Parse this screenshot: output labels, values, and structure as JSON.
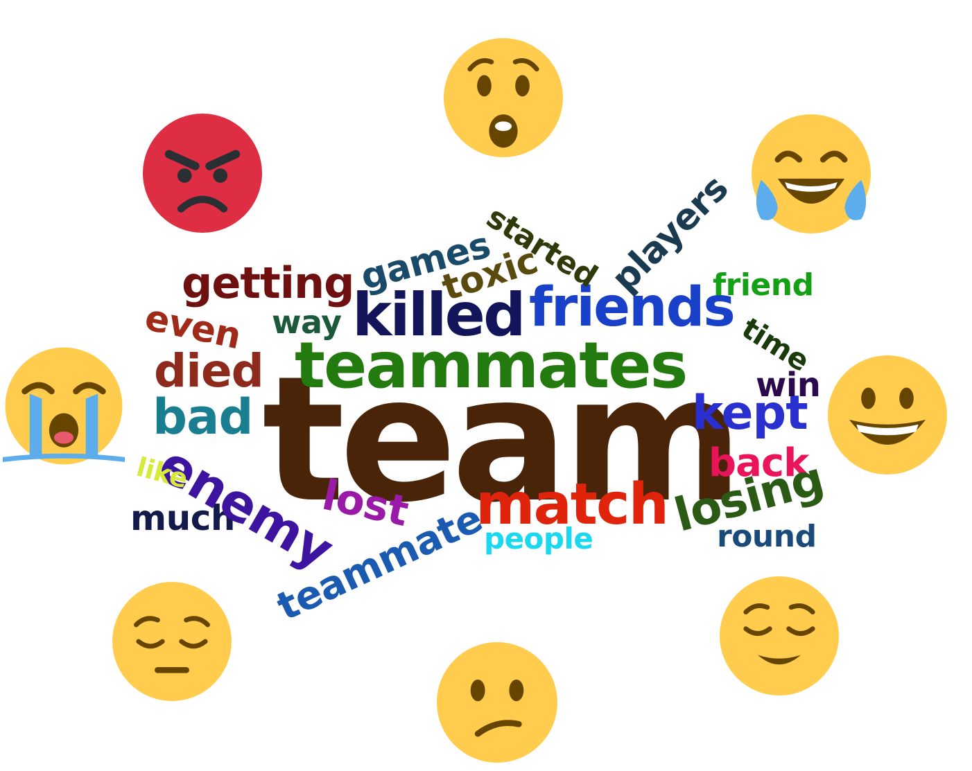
{
  "word_cloud": {
    "words": [
      {
        "id": "team",
        "text": "team",
        "color": "#4a2409"
      },
      {
        "id": "teammates",
        "text": "teammates",
        "color": "#237a0e"
      },
      {
        "id": "killed",
        "text": "killed",
        "color": "#12155a"
      },
      {
        "id": "friends",
        "text": "friends",
        "color": "#1840c8"
      },
      {
        "id": "match",
        "text": "match",
        "color": "#e0240c"
      },
      {
        "id": "getting",
        "text": "getting",
        "color": "#6e1010"
      },
      {
        "id": "died",
        "text": "died",
        "color": "#8e2a1c"
      },
      {
        "id": "bad",
        "text": "bad",
        "color": "#187e90"
      },
      {
        "id": "kept",
        "text": "kept",
        "color": "#2a2fd0"
      },
      {
        "id": "enemy",
        "text": "enemy",
        "color": "#3c14a0"
      },
      {
        "id": "losing",
        "text": "losing",
        "color": "#2a5a14"
      },
      {
        "id": "back",
        "text": "back",
        "color": "#ea145a"
      },
      {
        "id": "players",
        "text": "players",
        "color": "#1a3a50"
      },
      {
        "id": "teammate",
        "text": "teammate",
        "color": "#1a5ab0"
      },
      {
        "id": "toxic",
        "text": "toxic",
        "color": "#5a4a0e"
      },
      {
        "id": "games",
        "text": "games",
        "color": "#1a4a6a"
      },
      {
        "id": "even",
        "text": "even",
        "color": "#a02a1a"
      },
      {
        "id": "lost",
        "text": "lost",
        "color": "#9a1aa8"
      },
      {
        "id": "much",
        "text": "much",
        "color": "#141a4a"
      },
      {
        "id": "win",
        "text": "win",
        "color": "#2a0a4a"
      },
      {
        "id": "way",
        "text": "way",
        "color": "#1a5a3a"
      },
      {
        "id": "started",
        "text": "started",
        "color": "#2e3a0a"
      },
      {
        "id": "time",
        "text": "time",
        "color": "#1a3a0a"
      },
      {
        "id": "friend",
        "text": "friend",
        "color": "#14a014"
      },
      {
        "id": "round",
        "text": "round",
        "color": "#1a4a7a"
      },
      {
        "id": "people",
        "text": "people",
        "color": "#1ad8f0"
      },
      {
        "id": "like",
        "text": "like",
        "color": "#d6ea3a"
      }
    ]
  },
  "emojis": [
    {
      "id": "angry",
      "name": "angry-face-icon",
      "color": "#dd2e44"
    },
    {
      "id": "shocked",
      "name": "hushed-face-icon",
      "color": "#ffcc4d"
    },
    {
      "id": "joy",
      "name": "face-with-tears-of-joy-icon",
      "color": "#ffcc4d"
    },
    {
      "id": "crying",
      "name": "loudly-crying-face-icon",
      "color": "#ffcc4d"
    },
    {
      "id": "smile",
      "name": "grinning-face-icon",
      "color": "#ffcc4d"
    },
    {
      "id": "pensive",
      "name": "pensive-face-icon",
      "color": "#ffcc4d"
    },
    {
      "id": "confused",
      "name": "confused-face-icon",
      "color": "#ffcc4d"
    },
    {
      "id": "relieved",
      "name": "relieved-face-icon",
      "color": "#ffcc4d"
    }
  ],
  "colors": {
    "tear": "#5dadec",
    "feature_dark": "#664500",
    "angry_feature": "#292f33",
    "background": "#ffffff"
  }
}
